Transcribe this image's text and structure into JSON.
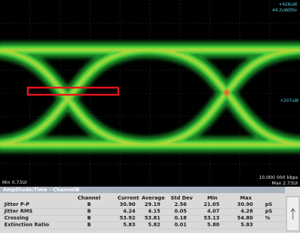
{
  "scope": {
    "top_labels": [
      "+426uW",
      "44.2uW/Div"
    ],
    "right_label": "+207uW",
    "bottom_left": "Min 0.73UI",
    "bottom_right": [
      "10.000 000 kbps",
      "Max 2.73UI"
    ]
  },
  "table": {
    "title": "Amplitude/Time - ChannelB",
    "columns": [
      "Channel",
      "Current",
      "Average",
      "Std Dev",
      "Min",
      "Max"
    ],
    "rows": [
      [
        "Jitter P-P",
        "B",
        "30.90",
        "29.19",
        "2.56",
        "21.05",
        "30.90",
        "pS"
      ],
      [
        "Jitter RMS",
        "B",
        "4.24",
        "4.15",
        "0.05",
        "4.07",
        "4.28",
        "pS"
      ],
      [
        "Crossing",
        "B",
        "53.92",
        "53.81",
        "0.18",
        "53.13",
        "54.80",
        "%"
      ],
      [
        "Extinction Ratio",
        "B",
        "5.83",
        "5.82",
        "0.01",
        "5.80",
        "5.83"
      ]
    ]
  }
}
